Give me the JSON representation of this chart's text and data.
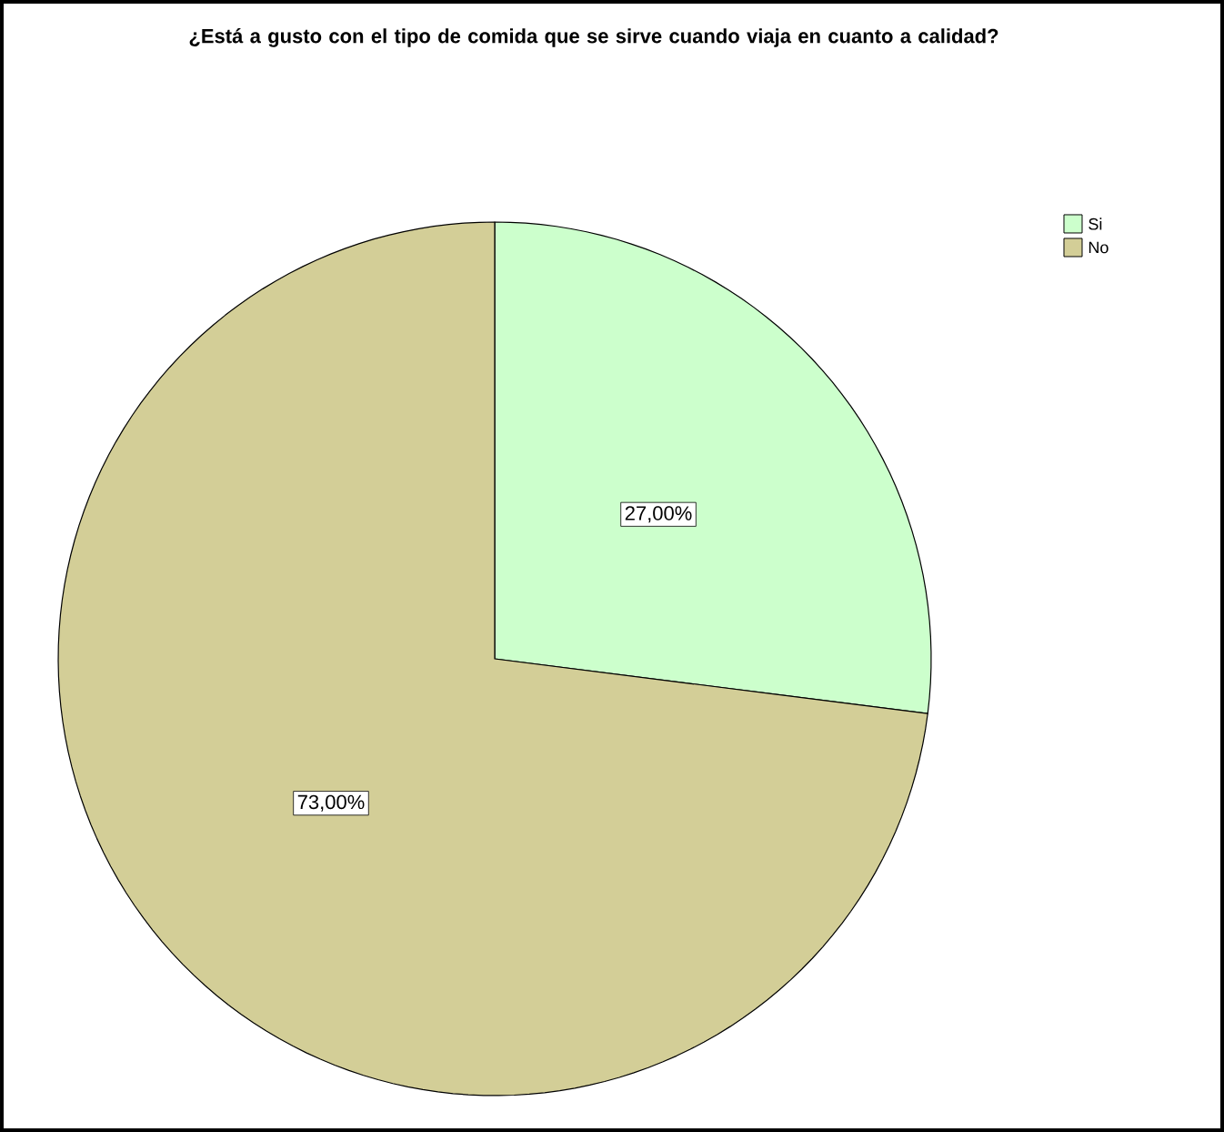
{
  "chart_data": {
    "type": "pie",
    "title": "¿Está a gusto con el tipo de comida que se sirve cuando viaja en cuanto a calidad?",
    "categories": [
      "Si",
      "No"
    ],
    "values": [
      27,
      73
    ],
    "value_labels": [
      "27,00%",
      "73,00%"
    ],
    "colors": [
      "#ccffcc",
      "#d3ce97"
    ],
    "legend": "top right"
  }
}
